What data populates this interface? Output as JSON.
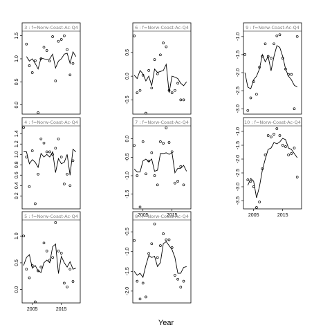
{
  "figure": {
    "xlabel": "Year",
    "x_ticks": [
      2005,
      2015
    ],
    "xlim": [
      2001.5,
      2021.5
    ]
  },
  "chart_data": [
    {
      "type": "line",
      "title": "3 : f=Norw-Coast-Ac-Q4",
      "ylim": [
        -0.2,
        1.6
      ],
      "yticks": [
        0.0,
        0.5,
        1.0,
        1.5
      ],
      "ytick_labels": [
        "0.0",
        "0.5",
        "1.0",
        "1.5"
      ],
      "points": {
        "x": [
          2003,
          2004,
          2005,
          2006,
          2007,
          2008,
          2009,
          2010,
          2011,
          2012,
          2013,
          2014,
          2015,
          2016,
          2017,
          2018,
          2019
        ],
        "y": [
          1.32,
          0.85,
          0.7,
          0.96,
          -0.17,
          1.0,
          1.25,
          1.18,
          0.95,
          1.48,
          0.52,
          1.38,
          1.42,
          1.5,
          1.2,
          0.65,
          0.9
        ]
      },
      "line": {
        "x": [
          2003,
          2004,
          2005,
          2006,
          2007,
          2008,
          2009,
          2010,
          2011,
          2012,
          2013,
          2014,
          2015,
          2016,
          2017,
          2018,
          2019,
          2020
        ],
        "y": [
          1.05,
          0.95,
          1.0,
          0.9,
          0.78,
          1.02,
          1.0,
          0.98,
          1.0,
          1.1,
          0.8,
          0.95,
          1.0,
          1.1,
          1.12,
          0.9,
          1.15,
          1.05
        ]
      }
    },
    {
      "type": "line",
      "title": "4 : f=Norw-Coast-Ac-Q4",
      "ylim": [
        -0.05,
        1.55
      ],
      "yticks": [
        0.2,
        0.4,
        0.6,
        0.8,
        1.0,
        1.2,
        1.4
      ],
      "ytick_labels": [
        "0.2",
        "0.4",
        "0.6",
        "0.8",
        "1.0",
        "1.2",
        "1.4"
      ],
      "points": {
        "x": [
          2002,
          2003,
          2004,
          2005,
          2006,
          2007,
          2008,
          2009,
          2010,
          2011,
          2012,
          2013,
          2014,
          2015,
          2016,
          2017,
          2018,
          2019
        ],
        "y": [
          1.52,
          0.95,
          0.38,
          1.07,
          0.05,
          0.62,
          1.3,
          1.22,
          1.05,
          1.05,
          1.0,
          1.12,
          1.3,
          0.95,
          0.43,
          0.62,
          0.4,
          0.88
        ]
      },
      "line": {
        "x": [
          2002,
          2003,
          2004,
          2005,
          2006,
          2007,
          2008,
          2009,
          2010,
          2011,
          2012,
          2013,
          2014,
          2015,
          2016,
          2017,
          2018,
          2019,
          2020
        ],
        "y": [
          1.05,
          1.05,
          0.82,
          0.9,
          0.85,
          0.75,
          1.02,
          0.95,
          1.0,
          0.95,
          1.05,
          0.65,
          0.92,
          0.82,
          0.85,
          1.0,
          0.6,
          1.1,
          1.05
        ]
      }
    },
    {
      "type": "line",
      "title": "5 : f=Norw-Coast-Ac-Q4",
      "ylim": [
        -0.25,
        1.3
      ],
      "yticks": [
        0.0,
        0.5,
        1.0
      ],
      "ytick_labels": [
        "0.0",
        "0.5",
        "1.0"
      ],
      "points": {
        "x": [
          2002,
          2003,
          2004,
          2005,
          2006,
          2007,
          2008,
          2009,
          2010,
          2011,
          2012,
          2013,
          2014,
          2015,
          2016,
          2017,
          2018,
          2019
        ],
        "y": [
          1.0,
          0.38,
          0.22,
          0.45,
          -0.23,
          0.35,
          0.42,
          0.87,
          0.72,
          0.55,
          0.6,
          1.25,
          0.72,
          0.68,
          0.12,
          0.05,
          0.38,
          0.15
        ]
      },
      "line": {
        "x": [
          2002,
          2003,
          2004,
          2005,
          2006,
          2007,
          2008,
          2009,
          2010,
          2011,
          2012,
          2013,
          2014,
          2015,
          2016,
          2017,
          2018,
          2019,
          2020
        ],
        "y": [
          0.45,
          0.6,
          0.65,
          0.4,
          0.45,
          0.35,
          0.32,
          0.5,
          0.55,
          0.5,
          0.8,
          0.85,
          0.3,
          0.62,
          0.5,
          0.42,
          0.52,
          0.38,
          0.4
        ]
      }
    },
    {
      "type": "line",
      "title": "6 : f=Norw-Coast-Ac-Q4",
      "ylim": [
        -0.8,
        0.95
      ],
      "yticks": [
        -0.5,
        0.0,
        0.5
      ],
      "ytick_labels": [
        "-0.5",
        "0.0",
        "0.5"
      ],
      "points": {
        "x": [
          2002,
          2003,
          2004,
          2005,
          2006,
          2007,
          2008,
          2009,
          2010,
          2011,
          2012,
          2013,
          2014,
          2015,
          2016,
          2017,
          2018,
          2019
        ],
        "y": [
          0.85,
          -0.35,
          -0.3,
          0.02,
          -0.78,
          0.12,
          -0.25,
          0.35,
          0.05,
          0.45,
          0.7,
          0.62,
          -0.3,
          -0.35,
          -0.3,
          -0.15,
          -0.5,
          -0.5
        ]
      },
      "line": {
        "x": [
          2002,
          2003,
          2004,
          2005,
          2006,
          2007,
          2008,
          2009,
          2010,
          2011,
          2012,
          2013,
          2014,
          2015,
          2016,
          2017,
          2018,
          2019,
          2020
        ],
        "y": [
          0.02,
          -0.05,
          0.12,
          0.05,
          -0.1,
          0.0,
          -0.2,
          0.15,
          0.08,
          0.1,
          0.12,
          0.25,
          -0.35,
          0.0,
          -0.02,
          -0.05,
          -0.15,
          -0.2,
          -0.12
        ]
      }
    },
    {
      "type": "line",
      "title": "7 : f=Norw-Coast-Ac-Q4",
      "ylim": [
        -1.9,
        0.35
      ],
      "yticks": [
        -1.5,
        -1.0,
        -0.5,
        0.0
      ],
      "ytick_labels": [
        "-1.5",
        "-1.0",
        "-0.5",
        "0.0"
      ],
      "points": {
        "x": [
          2002,
          2003,
          2004,
          2005,
          2006,
          2007,
          2008,
          2009,
          2010,
          2011,
          2012,
          2013,
          2014,
          2015,
          2016,
          2017,
          2018,
          2019
        ],
        "y": [
          -0.18,
          -1.0,
          -1.85,
          -0.08,
          -0.95,
          -0.6,
          -0.38,
          -1.0,
          -1.25,
          -0.08,
          -0.12,
          0.3,
          -0.1,
          -0.35,
          -1.2,
          -1.15,
          -0.75,
          -1.25
        ]
      },
      "line": {
        "x": [
          2002,
          2003,
          2004,
          2005,
          2006,
          2007,
          2008,
          2009,
          2010,
          2011,
          2012,
          2013,
          2014,
          2015,
          2016,
          2017,
          2018,
          2019,
          2020
        ],
        "y": [
          -0.82,
          -0.9,
          -0.9,
          -0.6,
          -0.55,
          -0.62,
          -0.55,
          -0.88,
          -0.85,
          -0.4,
          -0.4,
          -0.38,
          -0.42,
          -0.38,
          -0.92,
          -0.8,
          -0.8,
          -0.72,
          -0.88
        ]
      }
    },
    {
      "type": "line",
      "title": "8 : f=Norw-Coast-Ac-Q4",
      "ylim": [
        -2.3,
        -0.2
      ],
      "yticks": [
        -2.0,
        -1.5,
        -1.0,
        -0.5
      ],
      "ytick_labels": [
        "-2.0",
        "-1.5",
        "-1.0",
        "-0.5"
      ],
      "points": {
        "x": [
          2002,
          2003,
          2004,
          2005,
          2006,
          2007,
          2008,
          2009,
          2010,
          2011,
          2012,
          2013,
          2014,
          2015,
          2016,
          2017,
          2018,
          2019
        ],
        "y": [
          -0.72,
          -1.75,
          -2.2,
          -1.8,
          -2.15,
          -1.05,
          -0.8,
          -0.3,
          -1.15,
          -0.85,
          -0.55,
          -0.7,
          -0.7,
          -0.9,
          -1.6,
          -1.7,
          -1.9,
          -1.75
        ]
      },
      "line": {
        "x": [
          2002,
          2003,
          2004,
          2005,
          2006,
          2007,
          2008,
          2009,
          2010,
          2011,
          2012,
          2013,
          2014,
          2015,
          2016,
          2017,
          2018,
          2019,
          2020
        ],
        "y": [
          -1.5,
          -1.6,
          -1.55,
          -1.65,
          -1.35,
          -1.1,
          -1.15,
          -1.12,
          -1.38,
          -1.28,
          -0.8,
          -0.75,
          -0.85,
          -0.95,
          -1.15,
          -1.55,
          -1.55,
          -1.4,
          -1.38
        ]
      }
    },
    {
      "type": "line",
      "title": "9 : f=Norw-Coast-Ac-Q4",
      "ylim": [
        -3.15,
        -0.85
      ],
      "yticks": [
        -3.0,
        -2.5,
        -2.0,
        -1.5,
        -1.0
      ],
      "ytick_labels": [
        "-3.0",
        "-2.5",
        "-2.0",
        "-1.5",
        "-1.0"
      ],
      "points": {
        "x": [
          2002,
          2003,
          2004,
          2005,
          2006,
          2007,
          2008,
          2009,
          2010,
          2011,
          2012,
          2013,
          2014,
          2015,
          2016,
          2017,
          2018,
          2019,
          2020
        ],
        "y": [
          -1.5,
          -3.05,
          -2.7,
          -2.25,
          -2.6,
          -1.85,
          -1.55,
          -1.2,
          -1.55,
          -1.6,
          -1.2,
          -0.98,
          -0.95,
          -1.6,
          -1.9,
          -2.05,
          -2.05,
          -3.0,
          -1.0
        ]
      },
      "line": {
        "x": [
          2002,
          2003,
          2004,
          2005,
          2006,
          2007,
          2008,
          2009,
          2010,
          2011,
          2012,
          2013,
          2014,
          2015,
          2016,
          2017,
          2018,
          2019,
          2020
        ],
        "y": [
          -2.0,
          -2.4,
          -2.45,
          -2.2,
          -2.1,
          -1.9,
          -1.5,
          -1.7,
          -1.55,
          -1.95,
          -1.55,
          -1.25,
          -1.3,
          -1.55,
          -1.9,
          -2.1,
          -2.2,
          -2.35,
          -2.4
        ]
      }
    },
    {
      "type": "line",
      "title": "10 : f=Norw-Coast-Ac-Q4",
      "ylim": [
        -3.8,
        -0.8
      ],
      "yticks": [
        -3.5,
        -3.0,
        -2.5,
        -2.0,
        -1.5,
        -1.0
      ],
      "ytick_labels": [
        "-3.5",
        "-3.0",
        "-2.5",
        "-2.0",
        "-1.5",
        "-1.0"
      ],
      "points": {
        "x": [
          2003,
          2004,
          2005,
          2006,
          2007,
          2008,
          2009,
          2010,
          2011,
          2012,
          2013,
          2014,
          2015,
          2016,
          2017,
          2018,
          2019,
          2020
        ],
        "y": [
          -2.75,
          -2.8,
          -3.0,
          -3.75,
          -3.55,
          -2.35,
          -1.85,
          -1.15,
          -1.2,
          -1.1,
          -0.9,
          -1.15,
          -1.5,
          -1.55,
          -1.85,
          -1.8,
          -1.6,
          -2.65
        ]
      },
      "line": {
        "x": [
          2003,
          2004,
          2005,
          2006,
          2007,
          2008,
          2009,
          2010,
          2011,
          2012,
          2013,
          2014,
          2015,
          2016,
          2017,
          2018,
          2019,
          2020
        ],
        "y": [
          -2.95,
          -2.7,
          -2.8,
          -3.4,
          -3.0,
          -2.4,
          -2.0,
          -1.65,
          -1.6,
          -1.4,
          -1.45,
          -1.38,
          -1.25,
          -1.3,
          -1.6,
          -1.65,
          -1.8,
          -1.95
        ]
      }
    }
  ]
}
